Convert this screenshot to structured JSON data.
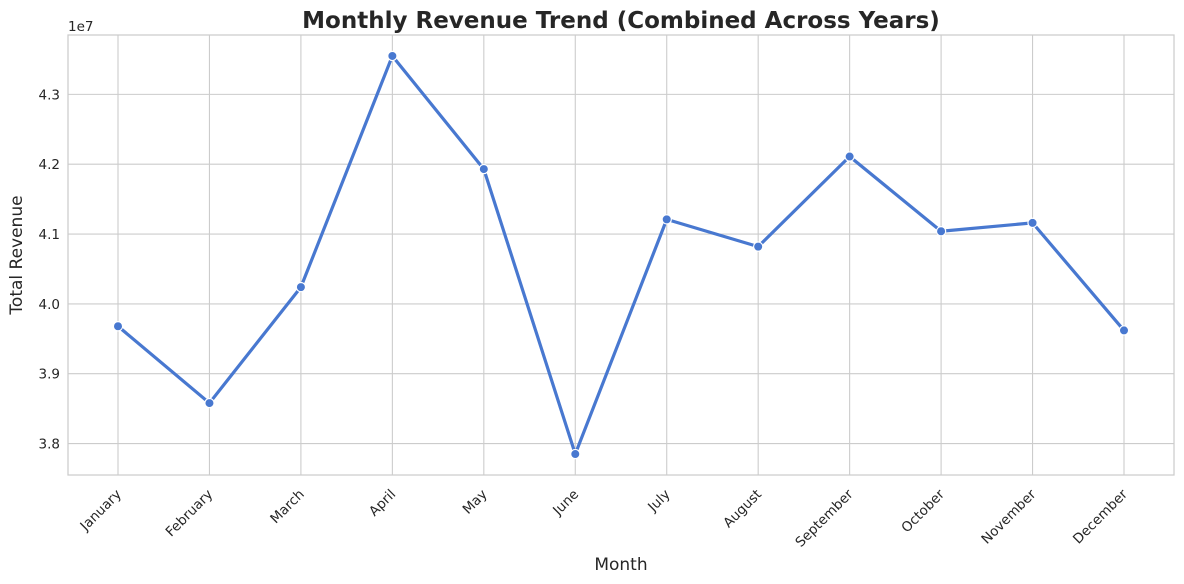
{
  "chart_data": {
    "type": "line",
    "title": "Monthly Revenue Trend (Combined Across Years)",
    "xlabel": "Month",
    "ylabel": "Total Revenue",
    "y_offset_label": "1e7",
    "categories": [
      "January",
      "February",
      "March",
      "April",
      "May",
      "June",
      "July",
      "August",
      "September",
      "October",
      "November",
      "December"
    ],
    "series": [
      {
        "values": [
          39680000,
          38580000,
          40240000,
          43550000,
          41930000,
          37850000,
          41210000,
          40820000,
          42110000,
          41040000,
          41160000,
          39620000
        ],
        "color": "#4878d0"
      }
    ],
    "ylim": [
      37550000,
      43850000
    ],
    "yticks": [
      38000000,
      39000000,
      40000000,
      41000000,
      42000000,
      43000000
    ],
    "ytick_labels": [
      "3.8",
      "3.9",
      "4.0",
      "4.1",
      "4.2",
      "4.3"
    ],
    "grid": true,
    "grid_color": "#cccccc",
    "background": "#ffffff"
  }
}
